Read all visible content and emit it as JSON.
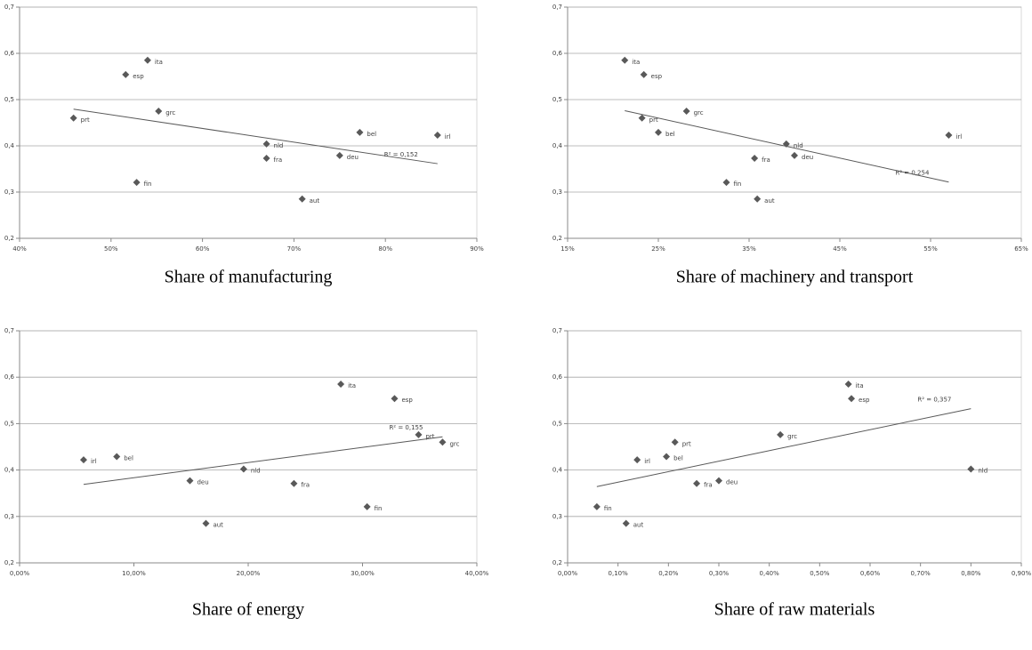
{
  "chart_data": [
    {
      "type": "scatter",
      "x_label": "Share of manufacturing",
      "color": "#595959",
      "grid": true,
      "trendline": true,
      "r2_label": "R² = 0,152",
      "labels": [
        "ita",
        "esp",
        "grc",
        "prt",
        "nld",
        "fra",
        "fin",
        "bel",
        "irl",
        "deu",
        "aut"
      ],
      "x": [
        54.0,
        51.6,
        55.2,
        45.9,
        67.0,
        67.0,
        52.8,
        77.2,
        85.7,
        75.0,
        70.9
      ],
      "values": [
        0.585,
        0.554,
        0.475,
        0.46,
        0.404,
        0.373,
        0.321,
        0.429,
        0.423,
        0.379,
        0.285
      ],
      "xlim": [
        40,
        90
      ],
      "xticks": [
        {
          "value": 40,
          "label": "40%"
        },
        {
          "value": 50,
          "label": "50%"
        },
        {
          "value": 60,
          "label": "60%"
        },
        {
          "value": 70,
          "label": "70%"
        },
        {
          "value": 80,
          "label": "80%"
        },
        {
          "value": 90,
          "label": "90%"
        }
      ],
      "ylim": [
        0.2,
        0.7
      ],
      "yticks": [
        {
          "value": 0.2,
          "label": "0,2"
        },
        {
          "value": 0.3,
          "label": "0,3"
        },
        {
          "value": 0.4,
          "label": "0,4"
        },
        {
          "value": 0.5,
          "label": "0,5"
        },
        {
          "value": 0.6,
          "label": "0,6"
        },
        {
          "value": 0.7,
          "label": "0,7"
        }
      ]
    },
    {
      "type": "scatter",
      "x_label": "Share of machinery and transport",
      "color": "#595959",
      "grid": true,
      "trendline": true,
      "r2_label": "R² = 0,254",
      "labels": [
        "ita",
        "esp",
        "grc",
        "prt",
        "bel",
        "nld",
        "fra",
        "deu",
        "fin",
        "aut",
        "irl"
      ],
      "x": [
        21.3,
        23.4,
        28.1,
        23.2,
        25.0,
        39.1,
        35.6,
        40.0,
        32.5,
        35.9,
        57.0
      ],
      "values": [
        0.585,
        0.554,
        0.475,
        0.46,
        0.429,
        0.404,
        0.373,
        0.379,
        0.321,
        0.285,
        0.423
      ],
      "xlim": [
        15,
        65
      ],
      "xticks": [
        {
          "value": 15,
          "label": "15%"
        },
        {
          "value": 25,
          "label": "25%"
        },
        {
          "value": 35,
          "label": "35%"
        },
        {
          "value": 45,
          "label": "45%"
        },
        {
          "value": 55,
          "label": "55%"
        },
        {
          "value": 65,
          "label": "65%"
        }
      ],
      "ylim": [
        0.2,
        0.7
      ],
      "yticks": [
        {
          "value": 0.2,
          "label": "0,2"
        },
        {
          "value": 0.3,
          "label": "0,3"
        },
        {
          "value": 0.4,
          "label": "0,4"
        },
        {
          "value": 0.5,
          "label": "0,5"
        },
        {
          "value": 0.6,
          "label": "0,6"
        },
        {
          "value": 0.7,
          "label": "0,7"
        }
      ]
    },
    {
      "type": "scatter",
      "x_label": "Share of energy",
      "color": "#595959",
      "grid": true,
      "trendline": true,
      "r2_label": "R² = 0,155",
      "labels": [
        "ita",
        "esp",
        "prt",
        "grc",
        "irl",
        "bel",
        "nld",
        "deu",
        "fra",
        "fin",
        "aut"
      ],
      "x": [
        28.1,
        32.8,
        34.9,
        37.0,
        5.6,
        8.5,
        19.6,
        14.9,
        24.0,
        30.4,
        16.3
      ],
      "values": [
        0.585,
        0.554,
        0.476,
        0.46,
        0.422,
        0.429,
        0.402,
        0.377,
        0.371,
        0.321,
        0.285
      ],
      "xlim": [
        0,
        40
      ],
      "xticks": [
        {
          "value": 0,
          "label": "0,00%"
        },
        {
          "value": 10,
          "label": "10,00%"
        },
        {
          "value": 20,
          "label": "20,00%"
        },
        {
          "value": 30,
          "label": "30,00%"
        },
        {
          "value": 40,
          "label": "40,00%"
        }
      ],
      "ylim": [
        0.2,
        0.7
      ],
      "yticks": [
        {
          "value": 0.2,
          "label": "0,2"
        },
        {
          "value": 0.3,
          "label": "0,3"
        },
        {
          "value": 0.4,
          "label": "0,4"
        },
        {
          "value": 0.5,
          "label": "0,5"
        },
        {
          "value": 0.6,
          "label": "0,6"
        },
        {
          "value": 0.7,
          "label": "0,7"
        }
      ]
    },
    {
      "type": "scatter",
      "x_label": "Share of raw materials",
      "color": "#595959",
      "grid": true,
      "trendline": true,
      "r2_label": "R² = 0,357",
      "labels": [
        "ita",
        "esp",
        "grc",
        "prt",
        "irl",
        "bel",
        "nld",
        "fra",
        "deu",
        "fin",
        "aut"
      ],
      "x": [
        0.557,
        0.563,
        0.422,
        0.213,
        0.138,
        0.196,
        0.8,
        0.256,
        0.3,
        0.058,
        0.116
      ],
      "values": [
        0.585,
        0.554,
        0.476,
        0.46,
        0.422,
        0.429,
        0.402,
        0.371,
        0.377,
        0.321,
        0.285
      ],
      "xlim": [
        0,
        0.9
      ],
      "xticks": [
        {
          "value": 0,
          "label": "0,00%"
        },
        {
          "value": 0.1,
          "label": "0,10%"
        },
        {
          "value": 0.2,
          "label": "0,20%"
        },
        {
          "value": 0.3,
          "label": "0,30%"
        },
        {
          "value": 0.4,
          "label": "0,40%"
        },
        {
          "value": 0.5,
          "label": "0,50%"
        },
        {
          "value": 0.6,
          "label": "0,60%"
        },
        {
          "value": 0.7,
          "label": "0,70%"
        },
        {
          "value": 0.8,
          "label": "0,80%"
        },
        {
          "value": 0.9,
          "label": "0,90%"
        }
      ],
      "ylim": [
        0.2,
        0.7
      ],
      "yticks": [
        {
          "value": 0.2,
          "label": "0,2"
        },
        {
          "value": 0.3,
          "label": "0,3"
        },
        {
          "value": 0.4,
          "label": "0,4"
        },
        {
          "value": 0.5,
          "label": "0,5"
        },
        {
          "value": 0.6,
          "label": "0,6"
        },
        {
          "value": 0.7,
          "label": "0,7"
        }
      ]
    }
  ]
}
